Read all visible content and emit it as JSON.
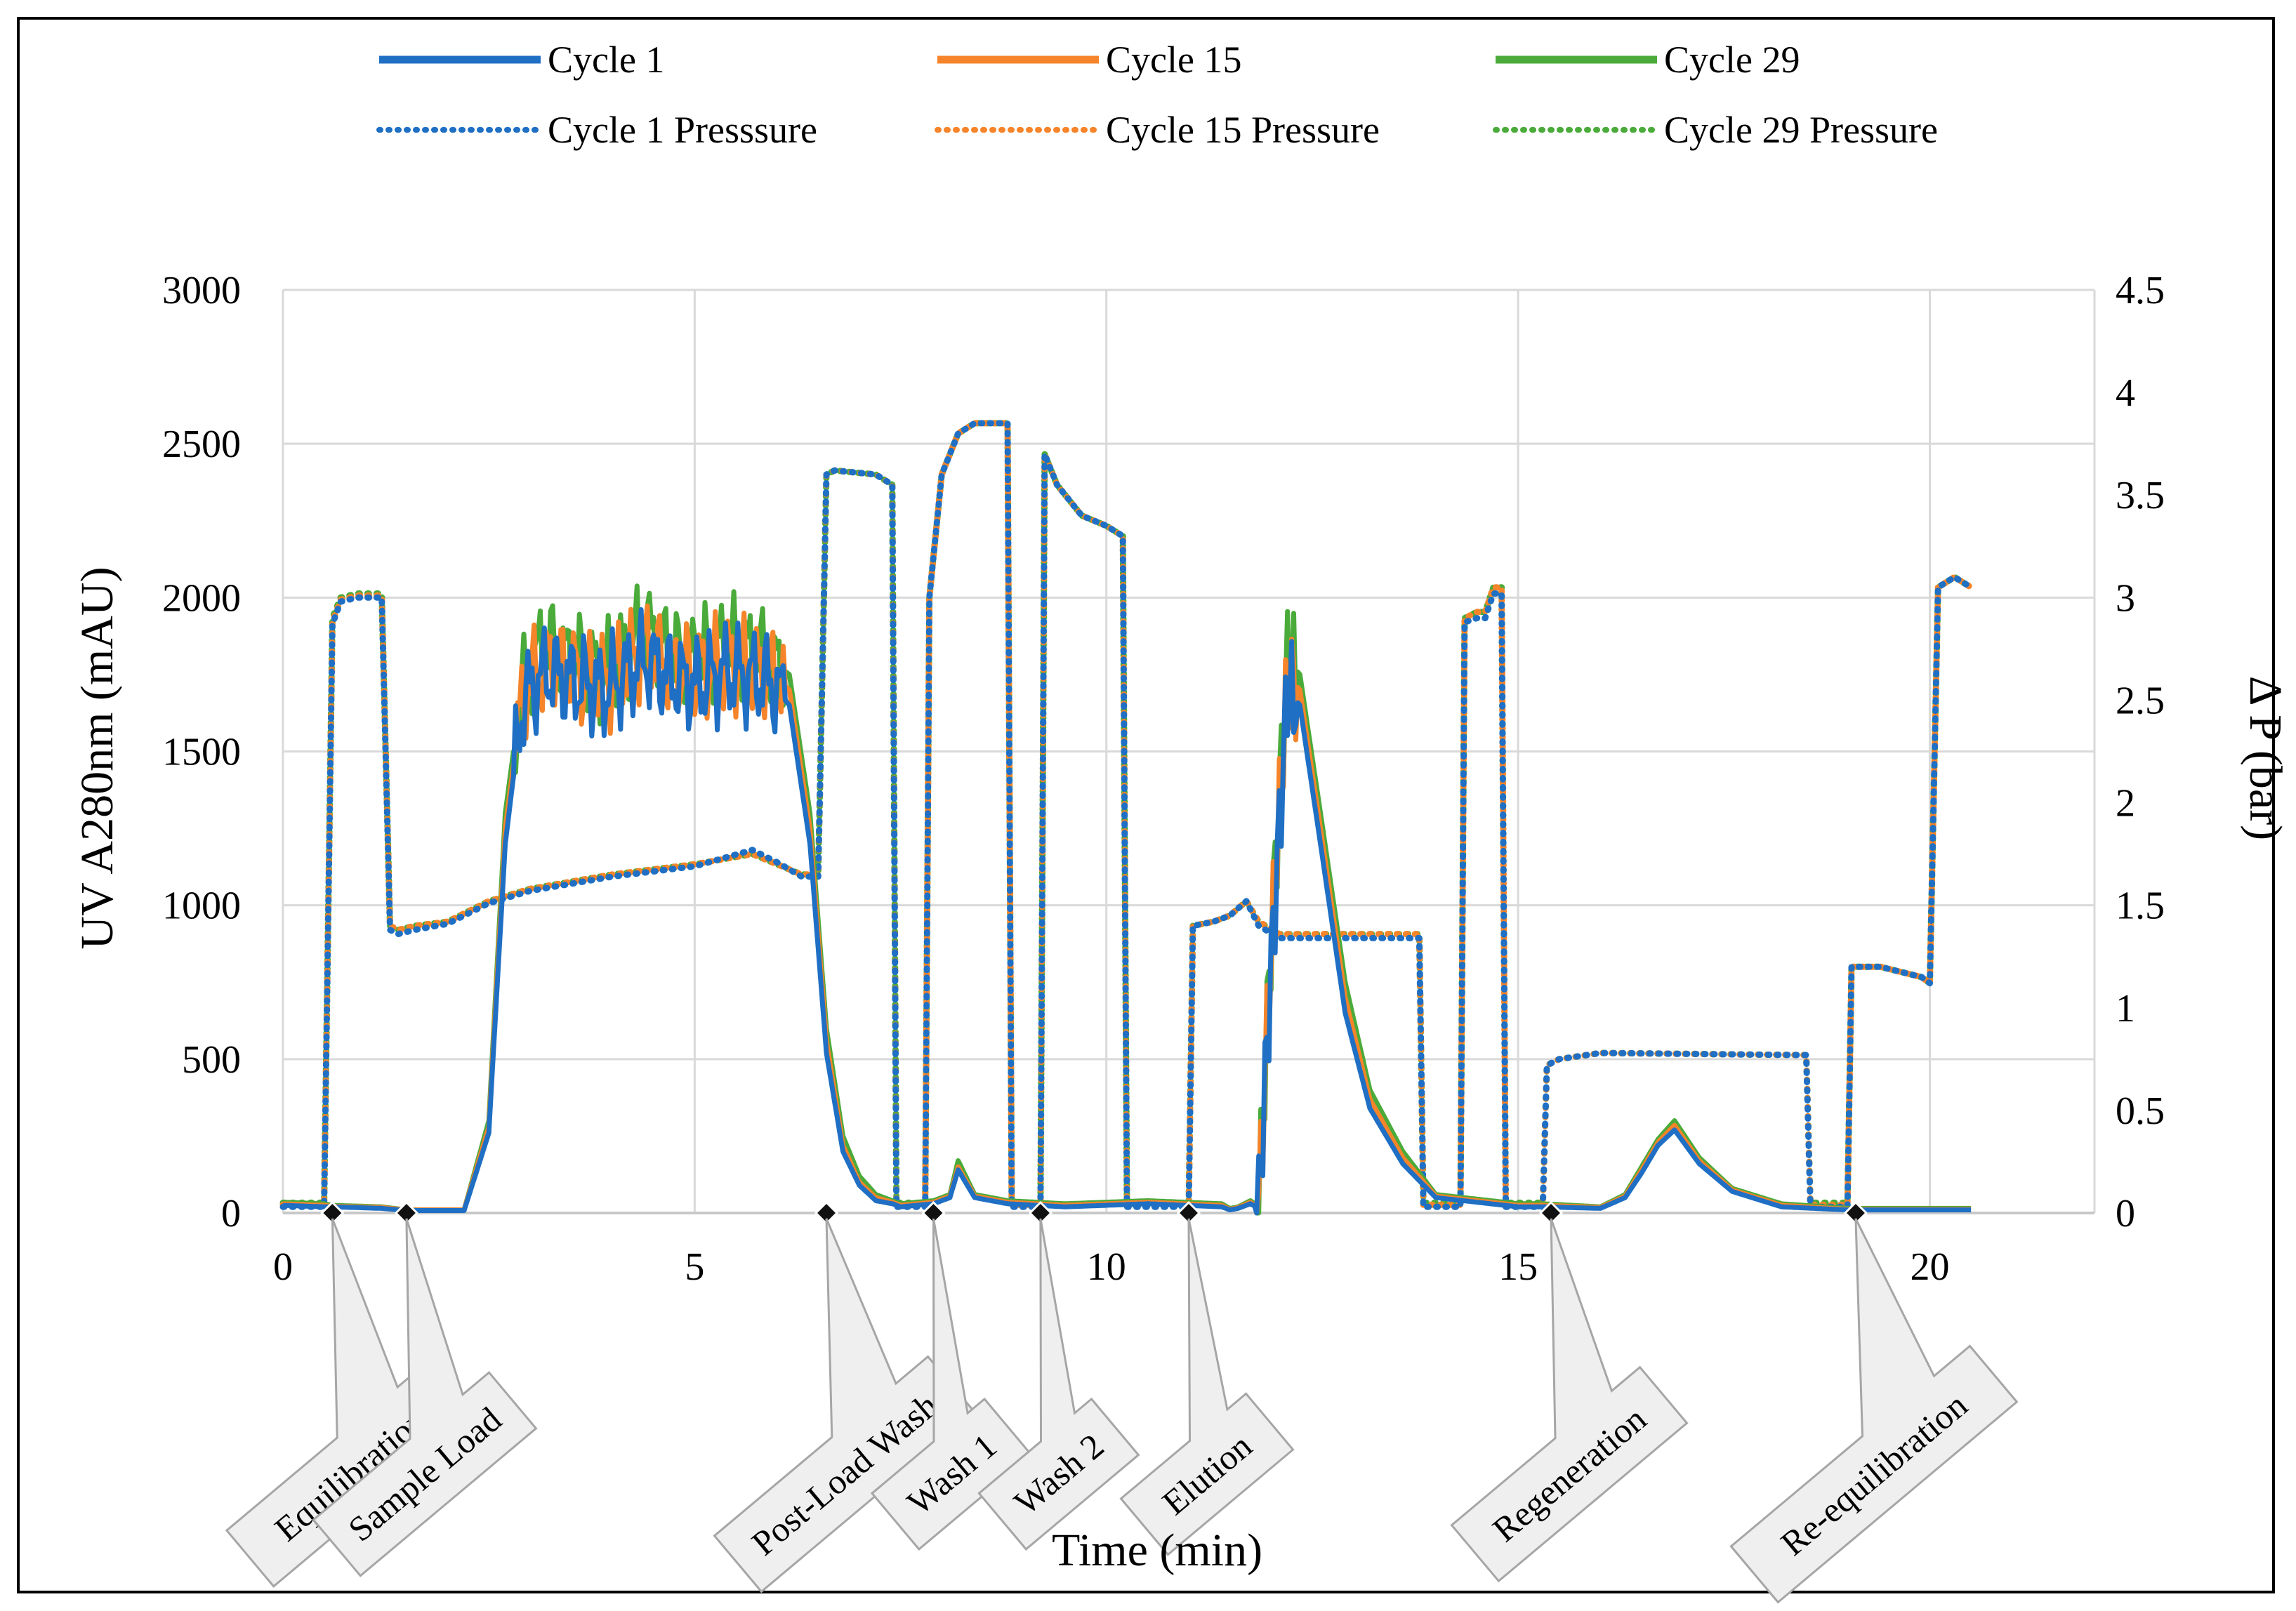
{
  "chart_data": {
    "type": "line",
    "xlabel": "Time (min)",
    "ylabel": "UV A280nm (mAU)",
    "y2label": "Δ P (bar)",
    "xlim": [
      0,
      22
    ],
    "ylim": [
      0,
      3000
    ],
    "y2lim": [
      0,
      4.5
    ],
    "xticks": [
      0,
      5,
      10,
      15,
      20
    ],
    "yticks": [
      0,
      500,
      1000,
      1500,
      2000,
      2500,
      3000
    ],
    "y2ticks": [
      0,
      0.5,
      1,
      1.5,
      2,
      2.5,
      3,
      3.5,
      4,
      4.5
    ],
    "y2ticklabels": [
      "0",
      "0.5",
      "1",
      "1.5",
      "2",
      "2.5",
      "3",
      "3.5",
      "4",
      "4.5"
    ],
    "grid": true,
    "legend": {
      "placement": "top",
      "entries": [
        {
          "label": "Cycle 1",
          "color": "#1f6fc4",
          "style": "solid"
        },
        {
          "label": "Cycle 15",
          "color": "#f5842a",
          "style": "solid"
        },
        {
          "label": "Cycle 29",
          "color": "#4aab3a",
          "style": "solid"
        },
        {
          "label": "Cycle 1 Presssure",
          "color": "#1f6fc4",
          "style": "dotted"
        },
        {
          "label": "Cycle 15 Pressure",
          "color": "#f5842a",
          "style": "dotted"
        },
        {
          "label": "Cycle 29 Pressure",
          "color": "#4aab3a",
          "style": "dotted"
        }
      ]
    },
    "series_uv": [
      {
        "name": "Cycle 29",
        "color": "#4aab3a",
        "axis": "left",
        "x": [
          0,
          0.5,
          0.6,
          1.2,
          1.5,
          2.2,
          2.5,
          2.7,
          2.9,
          3.0,
          3.2,
          3.5,
          3.9,
          4.4,
          4.7,
          5.0,
          5.4,
          5.9,
          6.15,
          6.4,
          6.6,
          6.8,
          7.0,
          7.2,
          7.4,
          7.5,
          7.7,
          7.9,
          8.0,
          8.1,
          8.2,
          8.4,
          8.8,
          9.5,
          10.5,
          11.4,
          11.5,
          11.6,
          11.75,
          11.85,
          12.0,
          12.2,
          12.35,
          12.6,
          12.9,
          13.2,
          13.6,
          14.0,
          15.0,
          15.3,
          16.0,
          16.3,
          16.5,
          16.7,
          16.9,
          17.2,
          17.6,
          18.2,
          19.0,
          20.0,
          20.5
        ],
        "y": [
          35,
          30,
          25,
          20,
          10,
          10,
          300,
          1300,
          1700,
          1780,
          1850,
          1800,
          1750,
          1900,
          1820,
          1800,
          1850,
          1800,
          1750,
          1300,
          600,
          250,
          120,
          60,
          40,
          30,
          35,
          40,
          50,
          60,
          170,
          60,
          40,
          30,
          40,
          30,
          15,
          20,
          40,
          20,
          900,
          1800,
          1750,
          1300,
          750,
          400,
          200,
          60,
          30,
          30,
          20,
          60,
          150,
          240,
          300,
          180,
          80,
          30,
          15,
          15,
          15
        ]
      },
      {
        "name": "Cycle 15",
        "color": "#f5842a",
        "axis": "left",
        "x": [
          0,
          0.5,
          0.6,
          1.2,
          1.5,
          2.2,
          2.5,
          2.7,
          2.9,
          3.0,
          3.2,
          3.5,
          3.9,
          4.4,
          4.7,
          5.0,
          5.4,
          5.9,
          6.15,
          6.4,
          6.6,
          6.8,
          7.0,
          7.2,
          7.4,
          7.5,
          7.7,
          7.9,
          8.0,
          8.1,
          8.2,
          8.4,
          8.8,
          9.5,
          10.5,
          11.4,
          11.5,
          11.6,
          11.75,
          11.85,
          12.0,
          12.2,
          12.35,
          12.6,
          12.9,
          13.2,
          13.6,
          14.0,
          15.0,
          15.3,
          16.0,
          16.3,
          16.5,
          16.7,
          16.9,
          17.2,
          17.6,
          18.2,
          19.0,
          20.0,
          20.5
        ],
        "y": [
          30,
          25,
          22,
          18,
          10,
          10,
          280,
          1250,
          1660,
          1730,
          1790,
          1760,
          1720,
          1840,
          1770,
          1760,
          1790,
          1760,
          1700,
          1250,
          560,
          220,
          100,
          50,
          35,
          25,
          30,
          35,
          45,
          55,
          150,
          55,
          35,
          25,
          35,
          25,
          12,
          18,
          35,
          18,
          850,
          1750,
          1700,
          1250,
          700,
          370,
          180,
          55,
          25,
          25,
          18,
          55,
          140,
          230,
          285,
          170,
          75,
          25,
          12,
          12,
          12
        ]
      },
      {
        "name": "Cycle 1",
        "color": "#1f6fc4",
        "axis": "left",
        "x": [
          0,
          0.5,
          0.6,
          1.2,
          1.5,
          2.2,
          2.5,
          2.7,
          2.9,
          3.0,
          3.2,
          3.5,
          3.9,
          4.4,
          4.7,
          5.0,
          5.4,
          5.9,
          6.15,
          6.4,
          6.6,
          6.8,
          7.0,
          7.2,
          7.4,
          7.5,
          7.7,
          7.9,
          8.0,
          8.1,
          8.2,
          8.4,
          8.8,
          9.5,
          10.5,
          11.4,
          11.5,
          11.6,
          11.75,
          11.85,
          12.0,
          12.2,
          12.35,
          12.6,
          12.9,
          13.2,
          13.6,
          14.0,
          15.0,
          15.3,
          16.0,
          16.3,
          16.5,
          16.7,
          16.9,
          17.2,
          17.6,
          18.2,
          19.0,
          20.0,
          20.5
        ],
        "y": [
          25,
          20,
          20,
          15,
          8,
          8,
          260,
          1200,
          1640,
          1700,
          1760,
          1730,
          1700,
          1800,
          1740,
          1720,
          1760,
          1730,
          1650,
          1200,
          520,
          200,
          90,
          40,
          30,
          20,
          25,
          30,
          40,
          50,
          140,
          50,
          30,
          20,
          30,
          20,
          10,
          15,
          30,
          15,
          800,
          1700,
          1650,
          1200,
          650,
          340,
          160,
          50,
          20,
          20,
          15,
          50,
          130,
          220,
          270,
          160,
          70,
          20,
          10,
          10,
          10
        ]
      }
    ],
    "series_pressure": [
      {
        "name": "Cycle 29 Pressure",
        "color": "#4aab3a",
        "axis": "right",
        "x": [
          0,
          0.5,
          0.6,
          0.7,
          0.9,
          1.2,
          1.3,
          1.4,
          1.6,
          2.0,
          2.5,
          3.0,
          4.0,
          5.0,
          5.7,
          6.0,
          6.3,
          6.5,
          6.6,
          6.7,
          7.2,
          7.4,
          7.45,
          7.8,
          7.85,
          8.0,
          8.2,
          8.4,
          8.8,
          8.85,
          9.2,
          9.25,
          9.4,
          9.7,
          10.0,
          10.2,
          10.25,
          11.0,
          11.05,
          11.3,
          11.5,
          11.7,
          11.85,
          12.1,
          13.8,
          13.85,
          14.3,
          14.35,
          14.5,
          14.6,
          14.7,
          14.8,
          14.85,
          15.3,
          15.35,
          15.5,
          16.0,
          18.5,
          18.55,
          19.0,
          19.05,
          19.4,
          19.9,
          20.0,
          20.1,
          20.3,
          20.5
        ],
        "y": [
          0.05,
          0.05,
          2.9,
          3.0,
          3.02,
          3.02,
          1.4,
          1.38,
          1.4,
          1.42,
          1.52,
          1.58,
          1.65,
          1.7,
          1.75,
          1.7,
          1.65,
          1.65,
          3.6,
          3.62,
          3.6,
          3.55,
          0.05,
          0.05,
          3.0,
          3.6,
          3.8,
          3.85,
          3.85,
          0.05,
          0.05,
          3.7,
          3.55,
          3.4,
          3.35,
          3.3,
          0.05,
          0.05,
          1.4,
          1.42,
          1.45,
          1.52,
          1.42,
          1.36,
          1.36,
          0.05,
          0.05,
          2.9,
          2.93,
          2.93,
          3.05,
          3.05,
          0.05,
          0.05,
          0.72,
          0.75,
          0.78,
          0.77,
          0.05,
          0.05,
          1.2,
          1.2,
          1.15,
          1.12,
          3.05,
          3.1,
          3.05
        ]
      },
      {
        "name": "Cycle 15 Pressure",
        "color": "#f5842a",
        "axis": "right",
        "x": [
          0,
          0.5,
          0.6,
          0.7,
          0.9,
          1.2,
          1.3,
          1.4,
          1.6,
          2.0,
          2.5,
          3.0,
          4.0,
          5.0,
          5.7,
          6.0,
          6.3,
          6.5,
          6.6,
          6.7,
          7.2,
          7.4,
          7.45,
          7.8,
          7.85,
          8.0,
          8.2,
          8.4,
          8.8,
          8.85,
          9.2,
          9.25,
          9.4,
          9.7,
          10.0,
          10.2,
          10.25,
          11.0,
          11.05,
          11.3,
          11.5,
          11.7,
          11.85,
          12.1,
          13.8,
          13.85,
          14.3,
          14.35,
          14.5,
          14.6,
          14.7,
          14.8,
          14.85,
          15.3,
          15.35,
          15.5,
          16.0,
          18.5,
          18.55,
          19.0,
          19.05,
          19.4,
          19.9,
          20.0,
          20.1,
          20.3,
          20.5
        ],
        "y": [
          0.04,
          0.04,
          2.88,
          2.99,
          3.01,
          3.01,
          1.4,
          1.38,
          1.4,
          1.42,
          1.52,
          1.58,
          1.65,
          1.7,
          1.75,
          1.7,
          1.65,
          1.65,
          3.6,
          3.62,
          3.6,
          3.55,
          0.04,
          0.04,
          3.0,
          3.6,
          3.8,
          3.85,
          3.85,
          0.04,
          0.04,
          3.7,
          3.55,
          3.4,
          3.35,
          3.3,
          0.04,
          0.04,
          1.4,
          1.42,
          1.45,
          1.52,
          1.42,
          1.36,
          1.36,
          0.04,
          0.04,
          2.9,
          2.93,
          2.93,
          3.05,
          3.05,
          0.04,
          0.04,
          0.72,
          0.75,
          0.78,
          0.77,
          0.04,
          0.04,
          1.2,
          1.2,
          1.15,
          1.12,
          3.05,
          3.1,
          3.05
        ]
      },
      {
        "name": "Cycle 1 Presssure",
        "color": "#1f6fc4",
        "axis": "right",
        "x": [
          0,
          0.5,
          0.6,
          0.7,
          0.9,
          1.2,
          1.3,
          1.4,
          1.6,
          2.0,
          2.5,
          3.0,
          4.0,
          5.0,
          5.7,
          6.0,
          6.3,
          6.5,
          6.6,
          6.7,
          7.2,
          7.4,
          7.45,
          7.8,
          7.85,
          8.0,
          8.2,
          8.4,
          8.8,
          8.85,
          9.2,
          9.25,
          9.4,
          9.7,
          10.0,
          10.2,
          10.25,
          11.0,
          11.05,
          11.3,
          11.5,
          11.7,
          11.85,
          12.1,
          13.8,
          13.85,
          14.3,
          14.35,
          14.5,
          14.6,
          14.7,
          14.8,
          14.85,
          15.3,
          15.35,
          15.5,
          16.0,
          18.5,
          18.55,
          19.0,
          19.05,
          19.4,
          19.9,
          20.0,
          20.1,
          20.3,
          20.5
        ],
        "y": [
          0.03,
          0.03,
          2.87,
          2.98,
          3.0,
          3.0,
          1.38,
          1.36,
          1.38,
          1.41,
          1.51,
          1.57,
          1.64,
          1.69,
          1.77,
          1.71,
          1.64,
          1.64,
          3.6,
          3.62,
          3.6,
          3.55,
          0.03,
          0.03,
          3.0,
          3.6,
          3.8,
          3.85,
          3.85,
          0.03,
          0.03,
          3.7,
          3.55,
          3.4,
          3.35,
          3.3,
          0.03,
          0.03,
          1.4,
          1.42,
          1.45,
          1.52,
          1.4,
          1.34,
          1.34,
          0.03,
          0.03,
          2.88,
          2.9,
          2.9,
          3.02,
          3.02,
          0.03,
          0.03,
          0.72,
          0.75,
          0.78,
          0.77,
          0.03,
          0.03,
          1.2,
          1.2,
          1.15,
          1.12,
          3.05,
          3.1,
          3.05
        ]
      }
    ],
    "annotations": [
      {
        "label": "Equilibration",
        "x": 0.6
      },
      {
        "label": "Sample Load",
        "x": 1.5
      },
      {
        "label": "Post-Load Wash",
        "x": 6.6
      },
      {
        "label": "Wash 1",
        "x": 7.9
      },
      {
        "label": "Wash 2",
        "x": 9.2
      },
      {
        "label": "Elution",
        "x": 11.0
      },
      {
        "label": "Regeneration",
        "x": 15.4
      },
      {
        "label": "Re-equilibration",
        "x": 19.1
      }
    ]
  }
}
